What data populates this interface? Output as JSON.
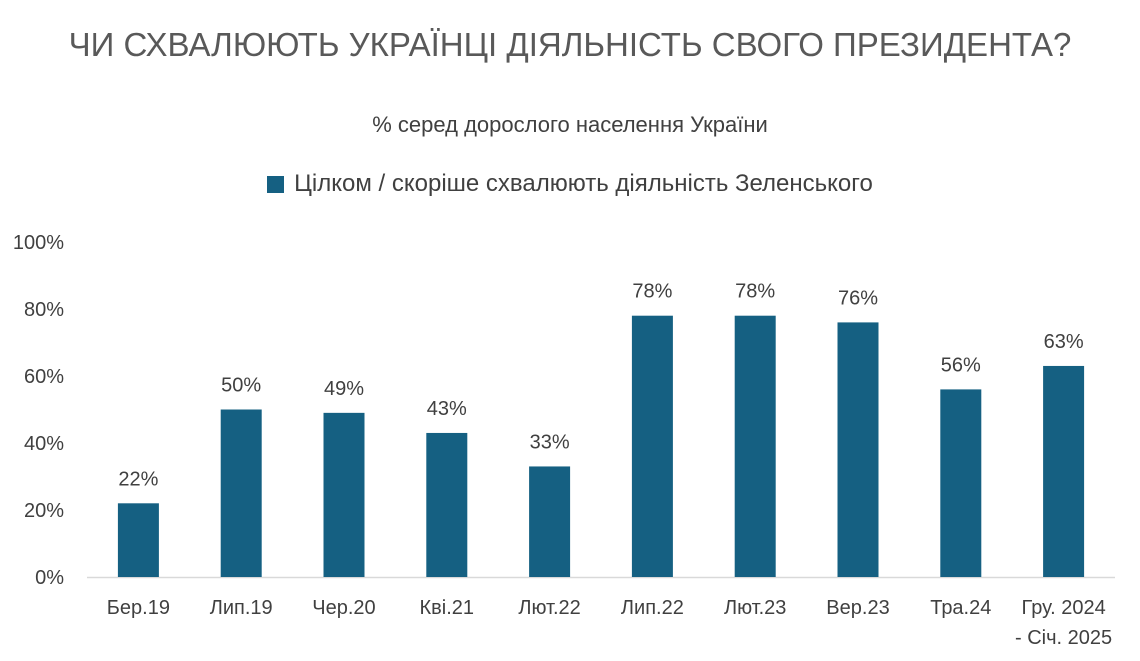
{
  "chart_data": {
    "type": "bar",
    "title": "ЧИ СХВАЛЮЮТЬ УКРАЇНЦІ ДІЯЛЬНІСТЬ СВОГО ПРЕЗИДЕНТА?",
    "subtitle": "% серед дорослого населення України",
    "legend_position": "top",
    "series": [
      {
        "name": "Цілком / скоріше схвалюють діяльність Зеленського",
        "color": "#156082",
        "values": [
          22,
          50,
          49,
          43,
          33,
          78,
          78,
          76,
          56,
          63
        ],
        "labels": [
          "22%",
          "50%",
          "49%",
          "43%",
          "33%",
          "78%",
          "78%",
          "76%",
          "56%",
          "63%"
        ]
      }
    ],
    "categories": [
      "Бер.19",
      "Лип.19",
      "Чер.20",
      "Кві.21",
      "Лют.22",
      "Лип.22",
      "Лют.23",
      "Вер.23",
      "Тра.24",
      "Гру. 2024 - Січ. 2025"
    ],
    "category_lines": [
      [
        "Бер.19"
      ],
      [
        "Лип.19"
      ],
      [
        "Чер.20"
      ],
      [
        "Кві.21"
      ],
      [
        "Лют.22"
      ],
      [
        "Лип.22"
      ],
      [
        "Лют.23"
      ],
      [
        "Вер.23"
      ],
      [
        "Тра.24"
      ],
      [
        "Гру. 2024",
        "- Січ. 2025"
      ]
    ],
    "y_ticks": [
      "0%",
      "20%",
      "40%",
      "60%",
      "80%",
      "100%"
    ],
    "y_tick_values": [
      0,
      20,
      40,
      60,
      80,
      100
    ],
    "ylim": [
      0,
      100
    ],
    "grid": false
  }
}
